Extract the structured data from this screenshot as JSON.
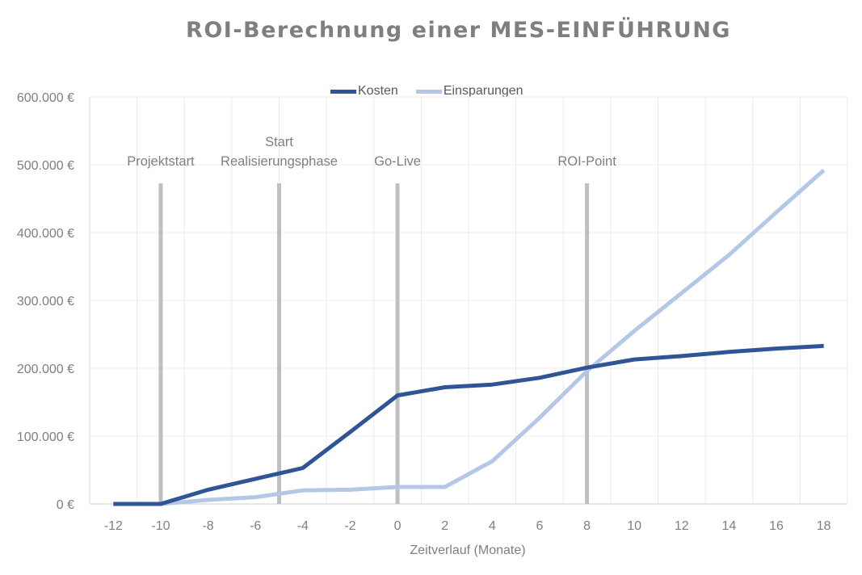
{
  "chart_data": {
    "type": "line",
    "title": "ROI-Berechnung einer MES-EINFÜHRUNG",
    "xlabel": "Zeitverlauf (Monate)",
    "ylabel": "",
    "x": [
      -12,
      -10,
      -8,
      -6,
      -4,
      -2,
      0,
      2,
      4,
      6,
      8,
      10,
      12,
      14,
      16,
      18
    ],
    "ylim": [
      0,
      600000
    ],
    "yticks": [
      0,
      100000,
      200000,
      300000,
      400000,
      500000,
      600000
    ],
    "ytick_labels": [
      "0 €",
      "100.000 €",
      "200.000 €",
      "300.000 €",
      "400.000 €",
      "500.000 €",
      "600.000 €"
    ],
    "grid": true,
    "legend_position": "top",
    "series": [
      {
        "name": "Kosten",
        "color": "#2f5597",
        "values": [
          0,
          0,
          21000,
          37000,
          53000,
          106000,
          160000,
          172000,
          176000,
          186000,
          201000,
          213000,
          218000,
          224000,
          229000,
          233000
        ]
      },
      {
        "name": "Einsparungen",
        "color": "#b4c7e7",
        "values": [
          0,
          0,
          6000,
          10000,
          20000,
          21000,
          25000,
          25000,
          63000,
          127000,
          196000,
          255000,
          311000,
          367000,
          430000,
          492000
        ]
      }
    ],
    "annotations": [
      {
        "label_lines": [
          "Projektstart"
        ],
        "x": -10,
        "color": "#bfbfbf"
      },
      {
        "label_lines": [
          "Start",
          "Realisierungsphase"
        ],
        "x": -5,
        "color": "#bfbfbf"
      },
      {
        "label_lines": [
          "Go-Live"
        ],
        "x": 0,
        "color": "#bfbfbf"
      },
      {
        "label_lines": [
          "ROI-Point"
        ],
        "x": 8,
        "color": "#bfbfbf"
      }
    ]
  },
  "legend": {
    "items": [
      {
        "label": "Kosten",
        "color": "#2f5597"
      },
      {
        "label": "Einsparungen",
        "color": "#b4c7e7"
      }
    ]
  }
}
